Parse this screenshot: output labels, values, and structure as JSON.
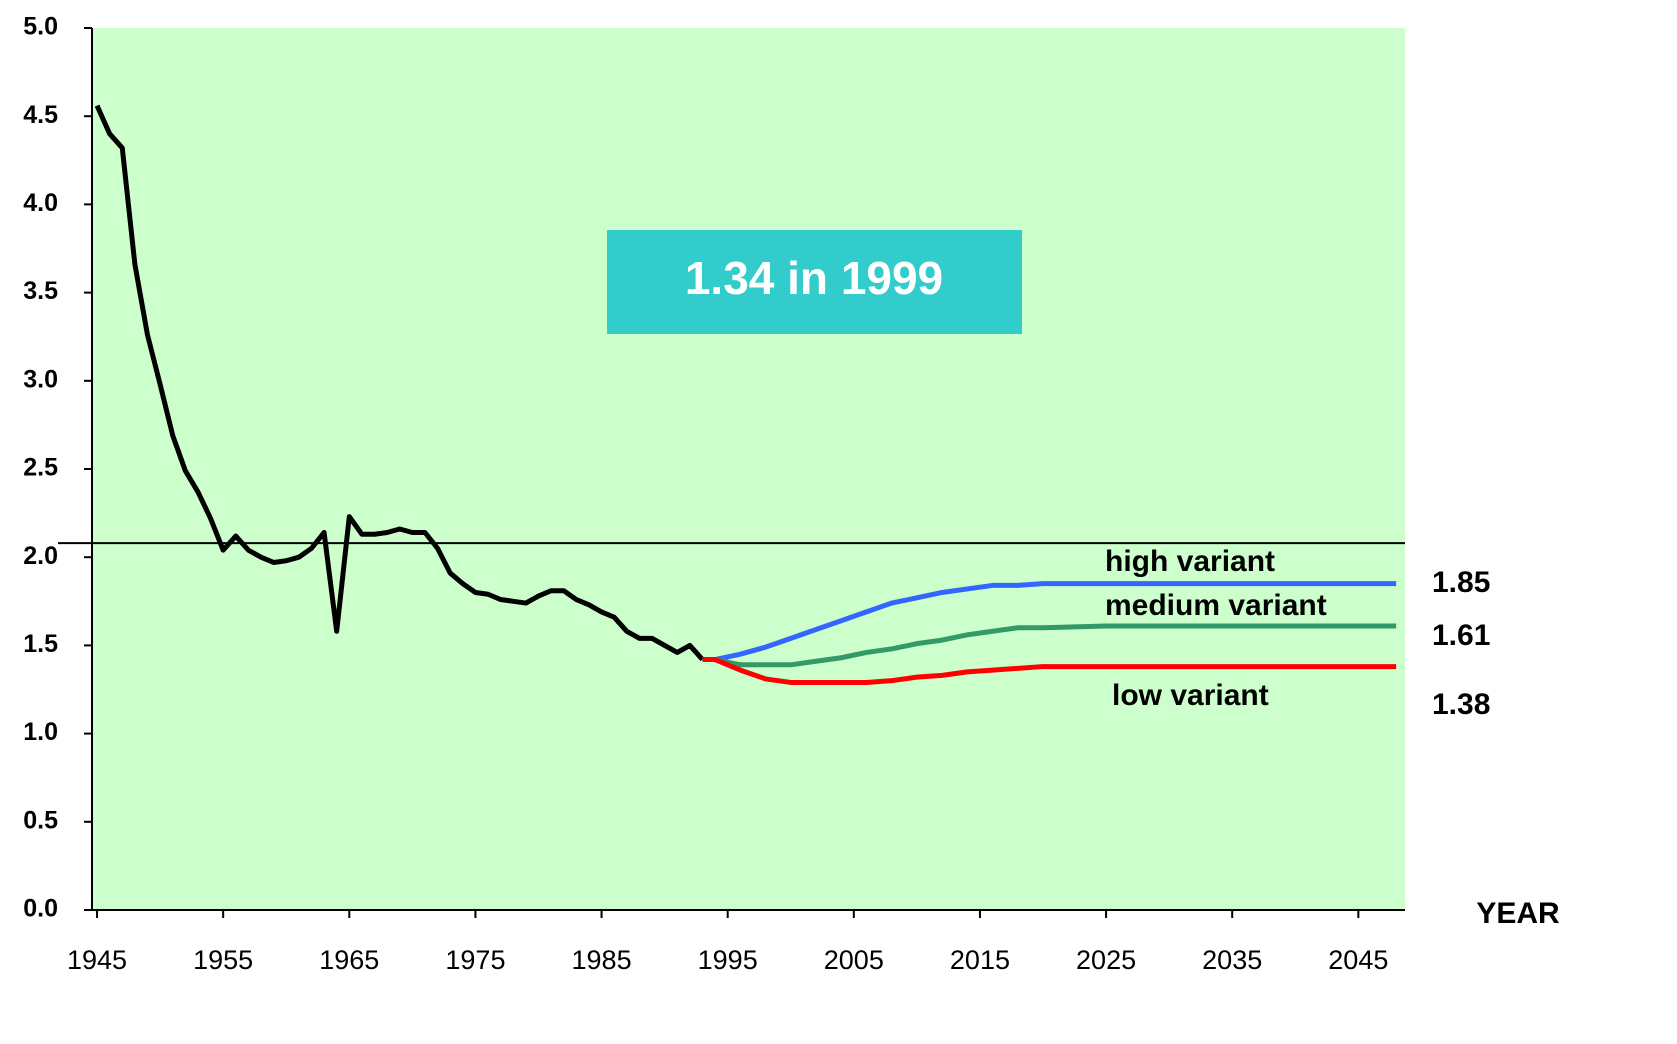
{
  "chart_data": {
    "type": "line",
    "annotation": "1.34 in 1999",
    "x_label": "YEAR",
    "background": "#ccffcc",
    "reference_line": 2.08,
    "xlim": [
      1944.6,
      2048.7
    ],
    "xticks": [
      1945,
      1955,
      1965,
      1975,
      1985,
      1995,
      2005,
      2015,
      2025,
      2035,
      2045
    ],
    "ylim": [
      0,
      5
    ],
    "yticks": [
      {
        "value": 0,
        "label": "0.0"
      },
      {
        "value": 0.5,
        "label": "0.5"
      },
      {
        "value": 1,
        "label": "1.0"
      },
      {
        "value": 1.5,
        "label": "1.5"
      },
      {
        "value": 2,
        "label": "2.0"
      },
      {
        "value": 2.5,
        "label": "2.5"
      },
      {
        "value": 3,
        "label": "3.0"
      },
      {
        "value": 3.5,
        "label": "3.5"
      },
      {
        "value": 4,
        "label": "4.0"
      },
      {
        "value": 4.5,
        "label": "4.5"
      },
      {
        "value": 5,
        "label": "5.0"
      }
    ],
    "series": [
      {
        "color": "#000000",
        "x": [
          1945,
          1946,
          1947,
          1948,
          1949,
          1950,
          1951,
          1952,
          1953,
          1954,
          1955,
          1956,
          1957,
          1958,
          1959,
          1960,
          1961,
          1962,
          1963,
          1964,
          1965,
          1966,
          1967,
          1968,
          1969,
          1970,
          1971,
          1972,
          1973,
          1974,
          1975,
          1976,
          1977,
          1978,
          1979,
          1980,
          1981,
          1982,
          1983,
          1984,
          1985,
          1986,
          1987,
          1988,
          1989,
          1990,
          1991,
          1992,
          1993
        ],
        "values": [
          4.56,
          4.4,
          4.32,
          3.66,
          3.26,
          2.98,
          2.69,
          2.49,
          2.37,
          2.22,
          2.04,
          2.12,
          2.04,
          2.0,
          1.97,
          1.98,
          2.0,
          2.05,
          2.14,
          1.58,
          2.23,
          2.13,
          2.13,
          2.14,
          2.16,
          2.14,
          2.14,
          2.05,
          1.91,
          1.85,
          1.8,
          1.79,
          1.76,
          1.75,
          1.74,
          1.78,
          1.81,
          1.81,
          1.76,
          1.73,
          1.69,
          1.66,
          1.58,
          1.54,
          1.54,
          1.5,
          1.46,
          1.5,
          1.42
        ]
      },
      {
        "name": "high variant",
        "color": "#3366ff",
        "x": [
          1994,
          1996,
          1998,
          2000,
          2002,
          2004,
          2006,
          2008,
          2010,
          2012,
          2014,
          2016,
          2018,
          2020,
          2025,
          2030,
          2048
        ],
        "values": [
          1.42,
          1.45,
          1.49,
          1.54,
          1.59,
          1.64,
          1.69,
          1.74,
          1.77,
          1.8,
          1.82,
          1.84,
          1.84,
          1.85,
          1.85,
          1.85,
          1.85
        ]
      },
      {
        "name": "medium variant",
        "color": "#339966",
        "x": [
          1994,
          1996,
          1998,
          2000,
          2002,
          2004,
          2006,
          2008,
          2010,
          2012,
          2014,
          2016,
          2018,
          2020,
          2025,
          2030,
          2048
        ],
        "values": [
          1.42,
          1.39,
          1.39,
          1.39,
          1.41,
          1.43,
          1.46,
          1.48,
          1.51,
          1.53,
          1.56,
          1.58,
          1.6,
          1.6,
          1.61,
          1.61,
          1.61
        ]
      },
      {
        "name": "low variant",
        "color": "#ff0000",
        "x": [
          1993,
          1994,
          1996,
          1998,
          2000,
          2002,
          2004,
          2006,
          2008,
          2010,
          2012,
          2014,
          2016,
          2018,
          2020,
          2025,
          2030,
          2048
        ],
        "values": [
          1.42,
          1.42,
          1.36,
          1.31,
          1.29,
          1.29,
          1.29,
          1.29,
          1.3,
          1.32,
          1.33,
          1.35,
          1.36,
          1.37,
          1.38,
          1.38,
          1.38,
          1.38
        ]
      }
    ]
  }
}
